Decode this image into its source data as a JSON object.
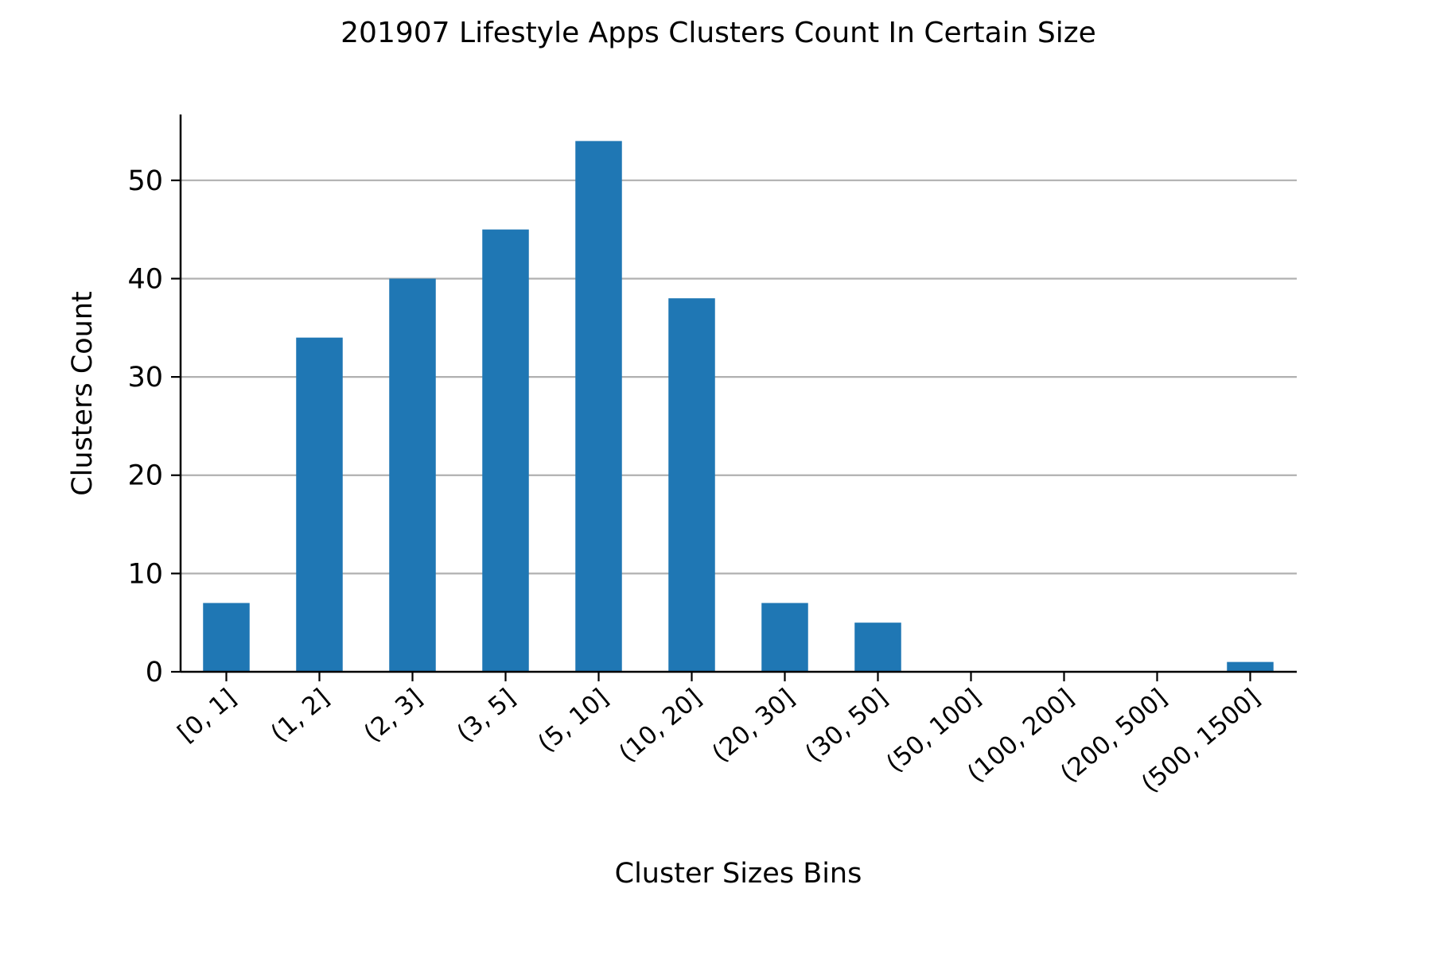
{
  "chart_data": {
    "type": "bar",
    "title": "201907 Lifestyle Apps Clusters Count In Certain Size",
    "xlabel": "Cluster Sizes Bins",
    "ylabel": "Clusters Count",
    "categories": [
      "[0, 1]",
      "(1, 2]",
      "(2, 3]",
      "(3, 5]",
      "(5, 10]",
      "(10, 20]",
      "(20, 30]",
      "(30, 50]",
      "(50, 100]",
      "(100, 200]",
      "(200, 500]",
      "(500, 1500]"
    ],
    "values": [
      7,
      34,
      40,
      45,
      54,
      38,
      7,
      5,
      0,
      0,
      0,
      1
    ],
    "ylim": [
      0,
      56.7
    ],
    "yticks": [
      0,
      10,
      20,
      30,
      40,
      50
    ],
    "grid": "horizontal",
    "legend": "none",
    "bar_color": "#1f77b4",
    "grid_color": "#b0b0b0"
  }
}
